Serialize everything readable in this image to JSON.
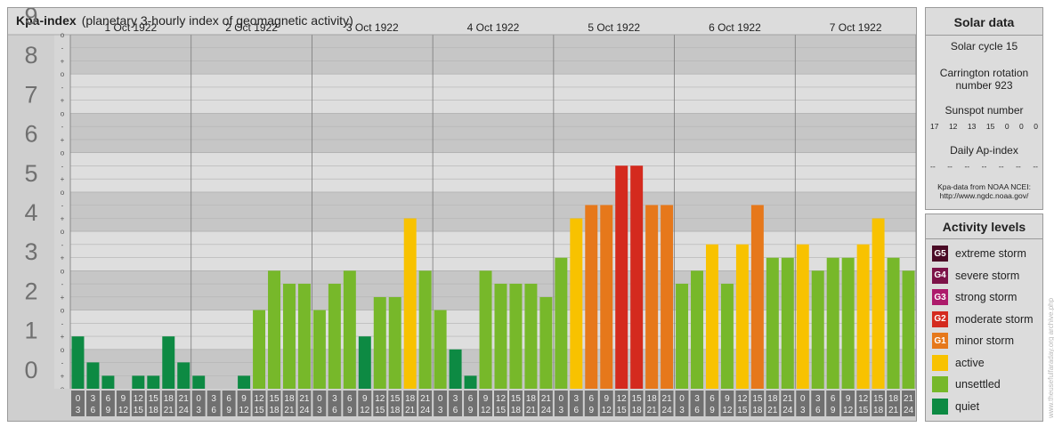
{
  "header": {
    "title": "Kpa-index",
    "subtitle": "(planetary 3-hourly index of geomagnetic activity)"
  },
  "solar": {
    "title": "Solar data",
    "cycle": "Solar cycle 15",
    "carrington_line1": "Carrington rotation",
    "carrington_line2": "number 923",
    "sunspot_label": "Sunspot number",
    "sunspot_values": [
      "17",
      "12",
      "13",
      "15",
      "0",
      "0",
      "0"
    ],
    "ap_label": "Daily Ap-index",
    "ap_values": [
      "--",
      "--",
      "--",
      "--",
      "--",
      "--",
      "--"
    ],
    "source_line1": "Kpa-data from NOAA NCEI:",
    "source_line2": "http://www.ngdc.noaa.gov/"
  },
  "levels": {
    "title": "Activity levels",
    "items": [
      {
        "badge": "G5",
        "label": "extreme storm",
        "color": "#4a0a25"
      },
      {
        "badge": "G4",
        "label": "severe storm",
        "color": "#7c1248"
      },
      {
        "badge": "G3",
        "label": "strong storm",
        "color": "#ad1a6b"
      },
      {
        "badge": "G2",
        "label": "moderate storm",
        "color": "#d42a1e"
      },
      {
        "badge": "G1",
        "label": "minor storm",
        "color": "#e6781b"
      },
      {
        "badge": "",
        "label": "active",
        "color": "#f8c200"
      },
      {
        "badge": "",
        "label": "unsettled",
        "color": "#77b82a"
      },
      {
        "badge": "",
        "label": "quiet",
        "color": "#0d8a43"
      }
    ]
  },
  "watermark": "www.theusefulfaraday.org archive.php",
  "chart_data": {
    "type": "bar",
    "ylim": [
      0,
      9
    ],
    "y_ticks": [
      "0",
      "1",
      "2",
      "3",
      "4",
      "5",
      "6",
      "7",
      "8",
      "9"
    ],
    "sub_ticks": [
      "-",
      "o",
      "+"
    ],
    "days": [
      "1 Oct 1922",
      "2 Oct 1922",
      "3 Oct 1922",
      "4 Oct 1922",
      "5 Oct 1922",
      "6 Oct 1922",
      "7 Oct 1922"
    ],
    "interval_start": [
      "0",
      "3",
      "6",
      "9",
      "12",
      "15",
      "18",
      "21"
    ],
    "interval_end": [
      "3",
      "6",
      "9",
      "12",
      "15",
      "18",
      "21",
      "24"
    ],
    "values": [
      1.33,
      0.67,
      0.33,
      0,
      0.33,
      0.33,
      1.33,
      0.67,
      0.33,
      0,
      0,
      0.33,
      2,
      3,
      2.67,
      2.67,
      2,
      2.67,
      3,
      1.33,
      2.33,
      2.33,
      4.33,
      3,
      2,
      1,
      0.33,
      3,
      2.67,
      2.67,
      2.67,
      2.33,
      3.33,
      4.33,
      4.67,
      4.67,
      5.67,
      5.67,
      4.67,
      4.67,
      2.67,
      3,
      3.67,
      2.67,
      3.67,
      4.67,
      3.33,
      3.33,
      3.67,
      3,
      3.33,
      3.33,
      3.67,
      4.33,
      3.33,
      3
    ],
    "color_scale": {
      "quiet": "#0d8a43",
      "unsettled": "#77b82a",
      "active": "#f8c200",
      "G1": "#e6781b",
      "G2": "#d42a1e"
    }
  }
}
